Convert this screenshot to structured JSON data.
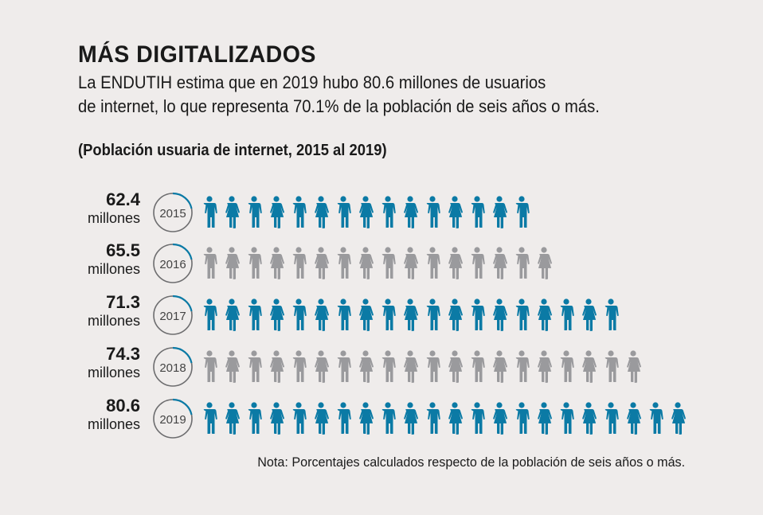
{
  "title": "MÁS DIGITALIZADOS",
  "subtitle_lines": [
    "La ENDUTIH estima que en 2019 hubo 80.6 millones de usuarios",
    "de internet, lo que representa 70.1% de la población de seis años o más."
  ],
  "chart_data": {
    "type": "pictogram",
    "title": "(Población usuaria de internet, 2015 al 2019)",
    "unit": "millones",
    "categories": [
      "2015",
      "2016",
      "2017",
      "2018",
      "2019"
    ],
    "values": [
      "62.4",
      "65.5",
      "71.3",
      "74.3",
      "80.6"
    ],
    "icon_counts": [
      15,
      16,
      19,
      20,
      22
    ],
    "row_colors": [
      "#0b7aa5",
      "#9a9a9d",
      "#0b7aa5",
      "#9a9a9d",
      "#0b7aa5"
    ],
    "icon_pattern": [
      "man",
      "woman"
    ]
  },
  "note": "Nota: Porcentajes calculados respecto de la población de seis años o más.",
  "colors": {
    "blue": "#0b7aa5",
    "gray": "#9a9a9d",
    "ring": "#6d6d6f",
    "background": "#efeceb"
  }
}
